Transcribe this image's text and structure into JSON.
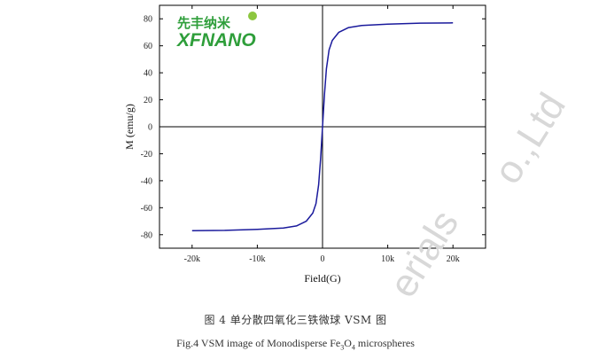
{
  "logo": {
    "cn": "先丰纳米",
    "en": "XFNANO"
  },
  "watermark": {
    "left": "erials",
    "right": "o.,Ltd"
  },
  "caption": {
    "cn": "图 4  单分散四氧化三铁微球 VSM 图",
    "en_prefix": "Fig.4 VSM image of Monodisperse Fe",
    "en_sub1": "3",
    "en_mid": "O",
    "en_sub2": "4",
    "en_suffix": " microspheres"
  },
  "chart_data": {
    "type": "line",
    "xlabel": "Field(G)",
    "ylabel": "M (emu/g)",
    "xlim": [
      -25000,
      25000
    ],
    "ylim": [
      -90,
      90
    ],
    "xticks": [
      -20000,
      -10000,
      0,
      10000,
      20000
    ],
    "xtick_labels": [
      "-20k",
      "-10k",
      "0",
      "10k",
      "20k"
    ],
    "yticks": [
      -80,
      -60,
      -40,
      -20,
      0,
      20,
      40,
      60,
      80
    ],
    "ytick_labels": [
      "-80",
      "-60",
      "-40",
      "-20",
      "0",
      "20",
      "40",
      "60",
      "80"
    ],
    "grid": false,
    "zero_lines": true,
    "series": [
      {
        "color": "#1a1a9c",
        "x": [
          -20000,
          -15000,
          -10000,
          -6000,
          -4000,
          -2500,
          -1500,
          -1000,
          -600,
          -300,
          -150,
          0,
          150,
          300,
          600,
          1000,
          1500,
          2500,
          4000,
          6000,
          10000,
          15000,
          20000
        ],
        "y": [
          -77,
          -76.8,
          -76,
          -75,
          -73.5,
          -70,
          -64,
          -57,
          -43,
          -24,
          -12,
          0,
          12,
          24,
          43,
          57,
          64,
          70,
          73.5,
          75,
          76,
          76.8,
          77
        ]
      }
    ]
  }
}
